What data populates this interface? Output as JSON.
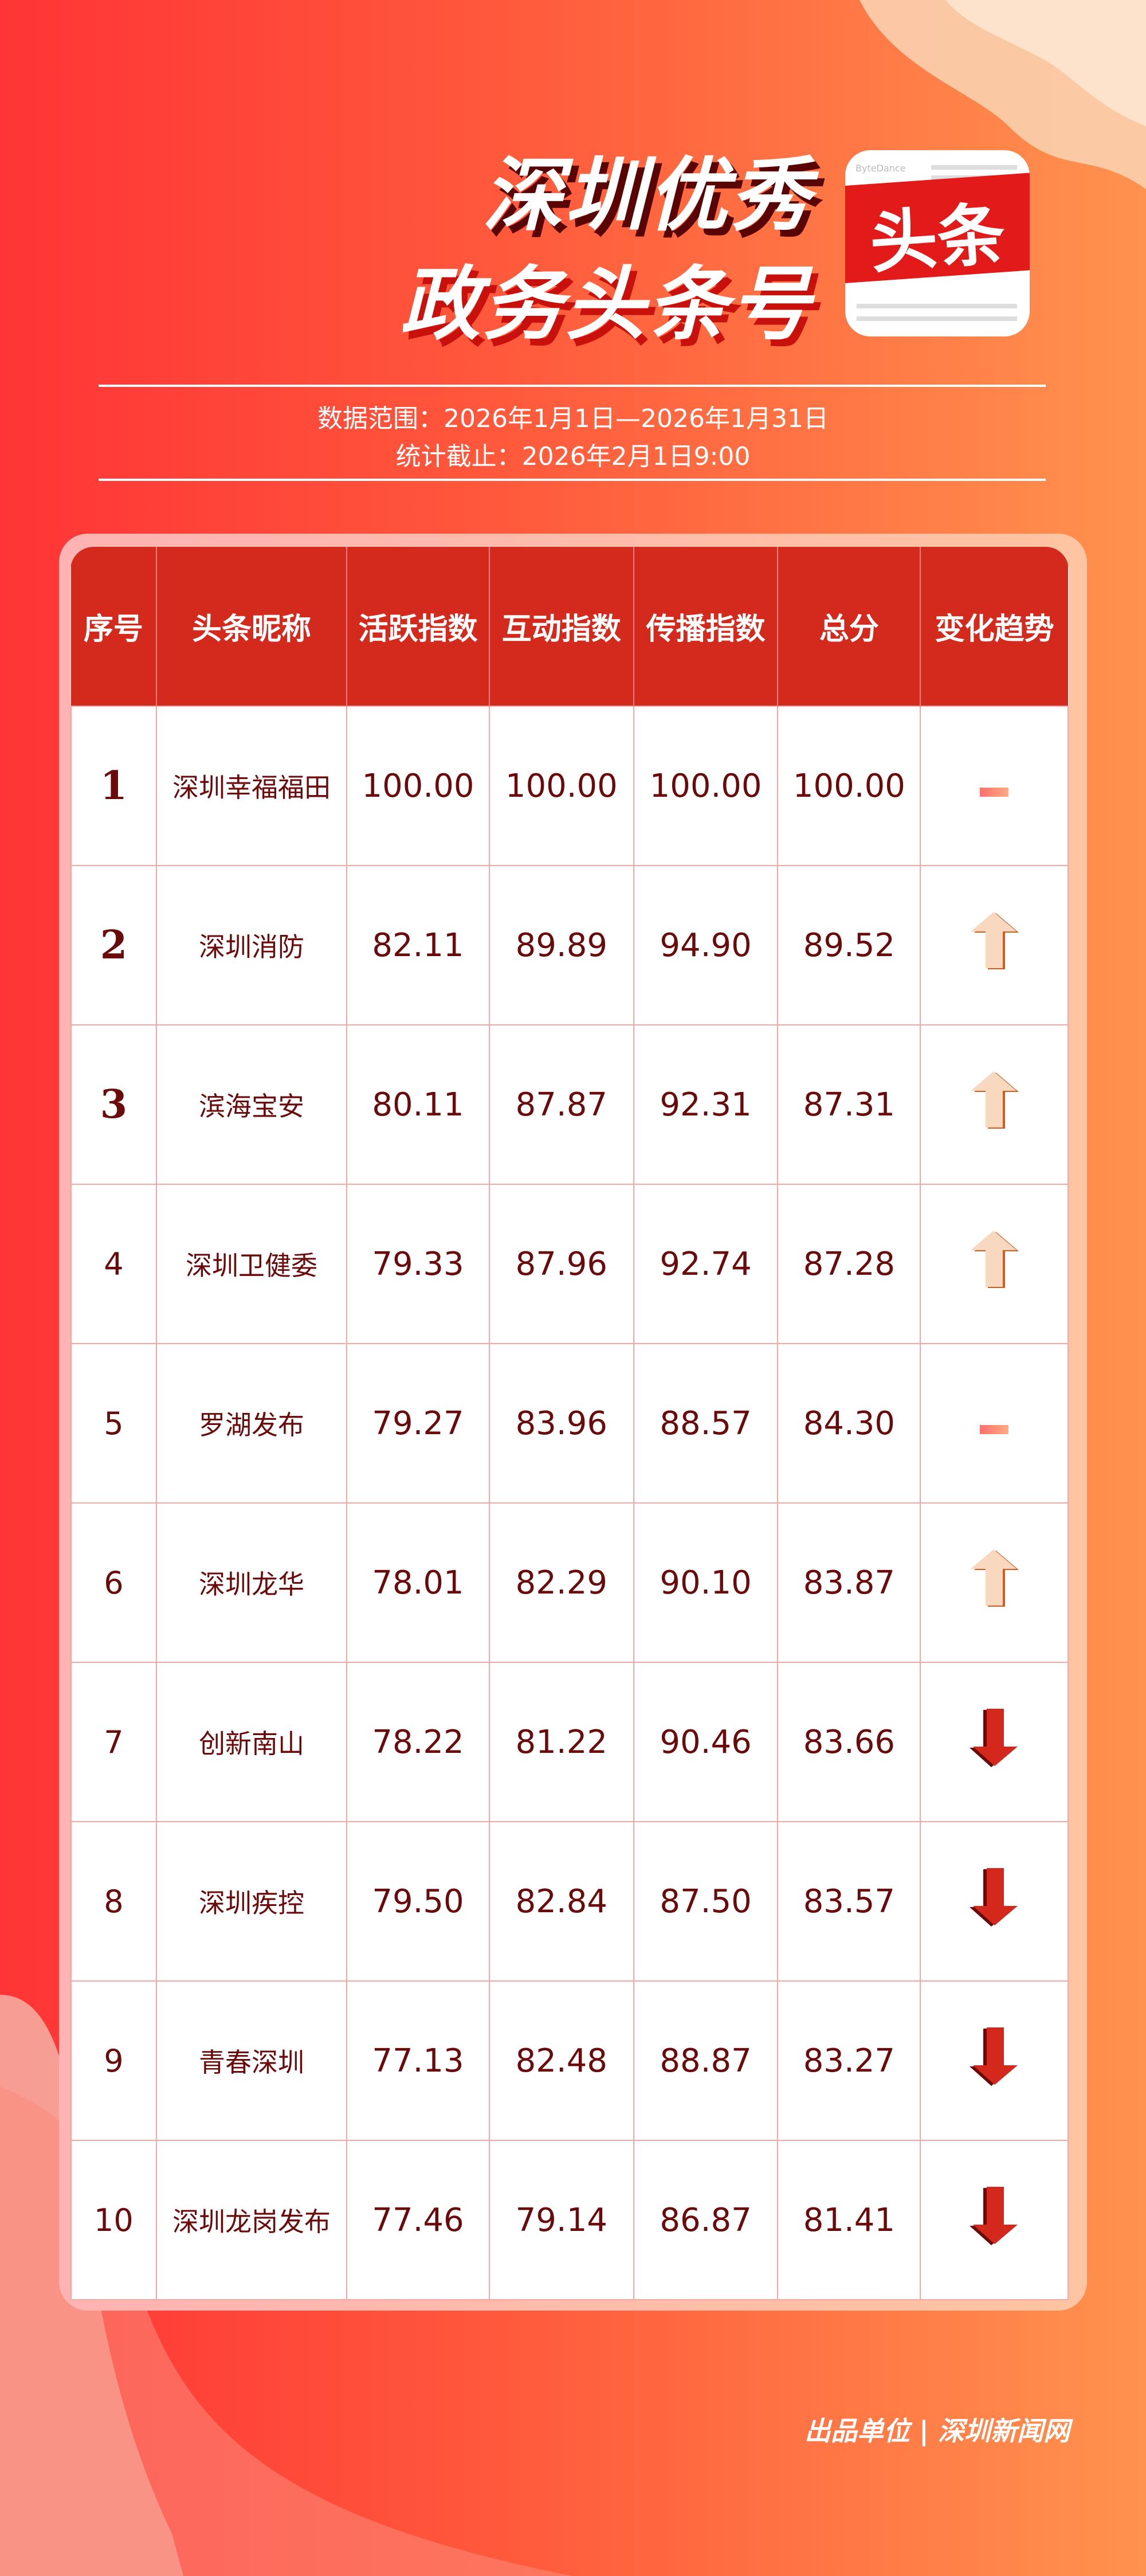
{
  "header": {
    "title_line1": "深圳优秀",
    "title_line2": "政务头条号",
    "logo_text": "头条",
    "logo_brand": "ByteDance"
  },
  "meta": {
    "range": "数据范围：2026年1月1日—2026年1月31日",
    "cutoff": "统计截止：2026年2月1日9:00"
  },
  "table": {
    "columns": [
      "序号",
      "头条昵称",
      "活跃指数",
      "互动指数",
      "传播指数",
      "总分",
      "变化趋势"
    ],
    "rows": [
      {
        "rank": "1",
        "name": "深圳幸福福田",
        "active": "100.00",
        "interact": "100.00",
        "spread": "100.00",
        "total": "100.00",
        "trend": "flat"
      },
      {
        "rank": "2",
        "name": "深圳消防",
        "active": "82.11",
        "interact": "89.89",
        "spread": "94.90",
        "total": "89.52",
        "trend": "up"
      },
      {
        "rank": "3",
        "name": "滨海宝安",
        "active": "80.11",
        "interact": "87.87",
        "spread": "92.31",
        "total": "87.31",
        "trend": "up"
      },
      {
        "rank": "4",
        "name": "深圳卫健委",
        "active": "79.33",
        "interact": "87.96",
        "spread": "92.74",
        "total": "87.28",
        "trend": "up"
      },
      {
        "rank": "5",
        "name": "罗湖发布",
        "active": "79.27",
        "interact": "83.96",
        "spread": "88.57",
        "total": "84.30",
        "trend": "flat"
      },
      {
        "rank": "6",
        "name": "深圳龙华",
        "active": "78.01",
        "interact": "82.29",
        "spread": "90.10",
        "total": "83.87",
        "trend": "up"
      },
      {
        "rank": "7",
        "name": "创新南山",
        "active": "78.22",
        "interact": "81.22",
        "spread": "90.46",
        "total": "83.66",
        "trend": "down"
      },
      {
        "rank": "8",
        "name": "深圳疾控",
        "active": "79.50",
        "interact": "82.84",
        "spread": "87.50",
        "total": "83.57",
        "trend": "down"
      },
      {
        "rank": "9",
        "name": "青春深圳",
        "active": "77.13",
        "interact": "82.48",
        "spread": "88.87",
        "total": "83.27",
        "trend": "down"
      },
      {
        "rank": "10",
        "name": "深圳龙岗发布",
        "active": "77.46",
        "interact": "79.14",
        "spread": "86.87",
        "total": "81.41",
        "trend": "down"
      }
    ]
  },
  "footer": {
    "text": "出品单位 | 深圳新闻网"
  },
  "colors": {
    "header_red": "#d4291d",
    "text_dark_red": "#6a0a0a",
    "up_arrow": "#f8d9c0",
    "down_arrow": "#d4281c"
  }
}
